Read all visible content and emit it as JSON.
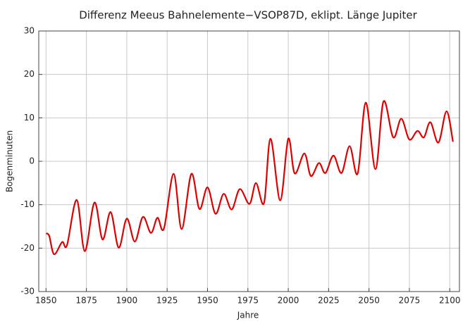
{
  "chart_data": {
    "type": "line",
    "title": "Differenz Meeus Bahnelemente−VSOP87D, eklipt. Länge Jupiter",
    "x_label": "Jahre",
    "y_label": "Bogenminuten",
    "xlim": [
      1845.5,
      2106
    ],
    "ylim": [
      -30,
      30
    ],
    "xticks": [
      1850,
      1875,
      1900,
      1925,
      1950,
      1975,
      2000,
      2025,
      2050,
      2075,
      2100
    ],
    "yticks": [
      -30,
      -20,
      -10,
      0,
      10,
      20,
      30
    ],
    "grid": true,
    "series": [
      {
        "name": "Differenz",
        "color": "#e00000",
        "x": [
          1850,
          1852,
          1855,
          1860,
          1863,
          1869,
          1874,
          1880,
          1885,
          1890,
          1895,
          1900,
          1905,
          1910,
          1915,
          1919,
          1923,
          1929,
          1934,
          1940,
          1945,
          1950,
          1955,
          1960,
          1965,
          1970,
          1976,
          1980,
          1985,
          1989,
          1995,
          2000,
          2004,
          2010,
          2014,
          2019,
          2023,
          2028,
          2033,
          2038,
          2043,
          2048,
          2054,
          2059,
          2065,
          2070,
          2075,
          2080,
          2084,
          2088,
          2093,
          2098,
          2102
        ],
        "values": [
          -16.6,
          -17.2,
          -21.4,
          -18.6,
          -19.3,
          -8.9,
          -20.7,
          -9.5,
          -18,
          -11.7,
          -19.9,
          -13.2,
          -18.5,
          -12.8,
          -16.5,
          -13,
          -15.5,
          -2.9,
          -15.6,
          -2.9,
          -11,
          -6,
          -12.1,
          -7.5,
          -11.1,
          -6.4,
          -9.8,
          -5,
          -9.6,
          5.2,
          -9,
          5.2,
          -2.8,
          1.8,
          -3.4,
          -0.4,
          -2.7,
          1.3,
          -2.7,
          3.5,
          -2.8,
          13.5,
          -1.8,
          13.8,
          5.5,
          9.8,
          5,
          7,
          5.5,
          9,
          4.3,
          11.5,
          4.5
        ]
      }
    ]
  }
}
